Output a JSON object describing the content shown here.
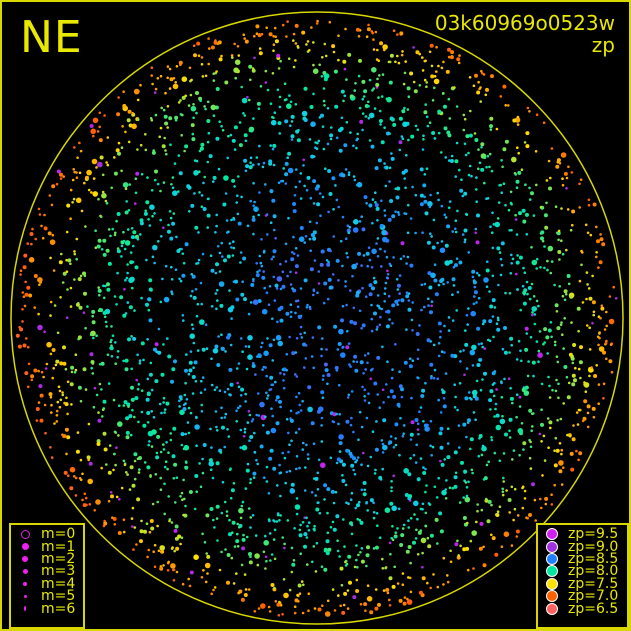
{
  "header": {
    "direction": "NE",
    "camera_id": "03k60969o0523w",
    "quantity": "zp"
  },
  "colors": {
    "frame": "#d8d800",
    "text": "#e8e800",
    "background": "#000000"
  },
  "chart_data": {
    "type": "scatter",
    "title": "03k60969o0523w zp",
    "grid": false,
    "color_quantity": "zp",
    "size_quantity": "m",
    "magnitude_legend": [
      {
        "label": "m=0",
        "style": "open"
      },
      {
        "label": "m=1"
      },
      {
        "label": "m=2"
      },
      {
        "label": "m=3"
      },
      {
        "label": "m=4"
      },
      {
        "label": "m=5"
      },
      {
        "label": "m=6"
      }
    ],
    "zp_legend": [
      {
        "label": "zp=9.5",
        "zp": 9.5,
        "color": "#d020f0"
      },
      {
        "label": "zp=9.0",
        "zp": 9.0,
        "color": "#a030e0"
      },
      {
        "label": "zp=8.5",
        "zp": 8.5,
        "color": "#2080ff"
      },
      {
        "label": "zp=8.0",
        "zp": 8.0,
        "color": "#00e8a0"
      },
      {
        "label": "zp=7.5",
        "zp": 7.5,
        "color": "#ffe000"
      },
      {
        "label": "zp=7.0",
        "zp": 7.0,
        "color": "#ff6000"
      },
      {
        "label": "zp=6.5",
        "zp": 6.5,
        "color": "#ff6060"
      }
    ],
    "legend_placement": [
      "bottom-left",
      "bottom-right"
    ]
  }
}
